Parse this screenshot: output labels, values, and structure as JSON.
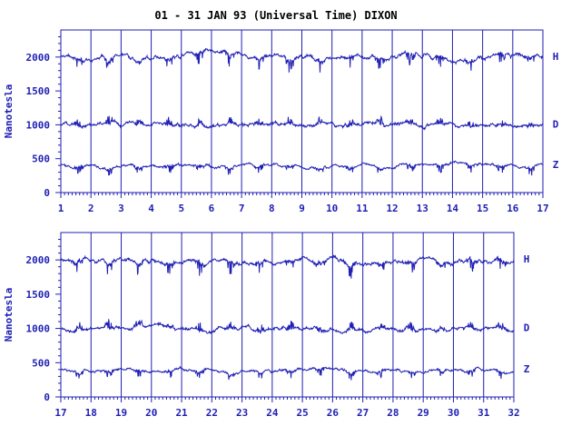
{
  "title": "01 - 31 JAN 93 (Universal Time) DIXON",
  "ylabel": "Nanotesla",
  "color": "#1f1fb4",
  "chart_data": [
    {
      "type": "line",
      "panel": "top",
      "xlabel": "",
      "ylabel": "Nanotesla",
      "xlim": [
        1,
        17
      ],
      "ylim": [
        0,
        2400
      ],
      "x_ticks": [
        "1",
        "2",
        "3",
        "4",
        "5",
        "6",
        "7",
        "8",
        "9",
        "10",
        "11",
        "12",
        "13",
        "14",
        "15",
        "16",
        "17"
      ],
      "y_ticks": [
        "0",
        "500",
        "1000",
        "1500",
        "2000"
      ],
      "series": [
        {
          "name": "H",
          "baseline": 2000
        },
        {
          "name": "D",
          "baseline": 1000
        },
        {
          "name": "Z",
          "baseline": 400
        }
      ],
      "grid": "vertical lines at each day"
    },
    {
      "type": "line",
      "panel": "bottom",
      "xlabel": "",
      "ylabel": "Nanotesla",
      "xlim": [
        17,
        32
      ],
      "ylim": [
        0,
        2400
      ],
      "x_ticks": [
        "17",
        "18",
        "19",
        "20",
        "21",
        "22",
        "23",
        "24",
        "25",
        "26",
        "27",
        "28",
        "29",
        "30",
        "31",
        "32"
      ],
      "y_ticks": [
        "0",
        "500",
        "1000",
        "1500",
        "2000"
      ],
      "series": [
        {
          "name": "H",
          "baseline": 2000
        },
        {
          "name": "D",
          "baseline": 1000
        },
        {
          "name": "Z",
          "baseline": 400
        }
      ],
      "grid": "vertical lines at each day"
    }
  ]
}
